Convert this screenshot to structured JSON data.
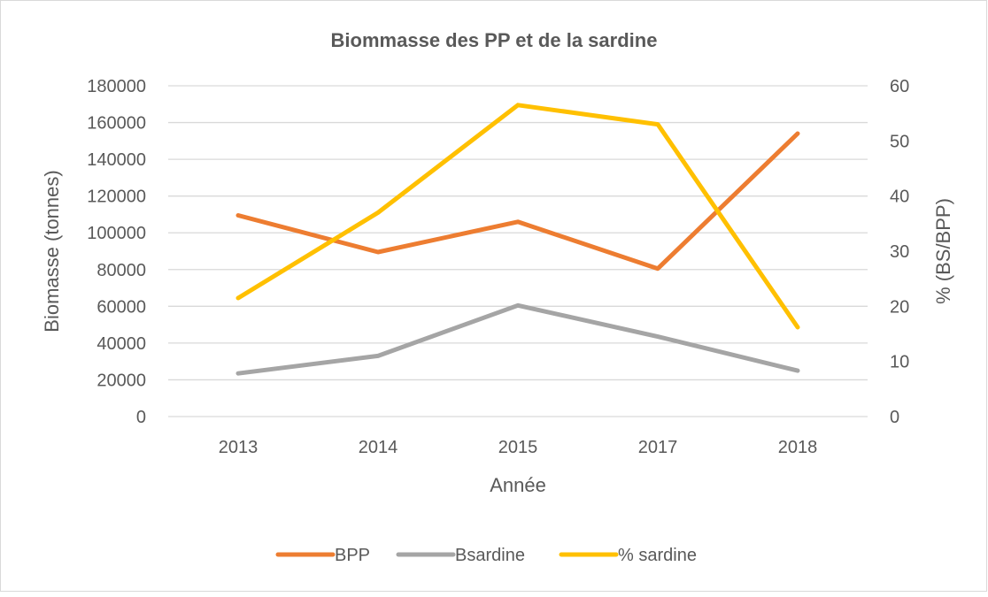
{
  "chart_data": {
    "type": "line",
    "title": "Biommasse des PP et de la sardine",
    "xlabel": "Année",
    "ylabel": "Biomasse (tonnes)",
    "y2label": "% (BS/BPP)",
    "categories": [
      "2013",
      "2014",
      "2015",
      "2017",
      "2018"
    ],
    "ylim": [
      0,
      180000
    ],
    "y_ticks": [
      0,
      20000,
      40000,
      60000,
      80000,
      100000,
      120000,
      140000,
      160000,
      180000
    ],
    "y2lim": [
      0,
      60
    ],
    "y2_ticks": [
      0,
      10,
      20,
      30,
      40,
      50,
      60
    ],
    "grid": true,
    "legend_position": "bottom",
    "series": [
      {
        "name": "BPP",
        "axis": "left",
        "color": "#ED7D31",
        "values": [
          109500,
          89500,
          106000,
          80500,
          154000
        ]
      },
      {
        "name": "Bsardine",
        "axis": "left",
        "color": "#A5A5A5",
        "values": [
          23500,
          33000,
          60500,
          43500,
          25000
        ]
      },
      {
        "name": "% sardine",
        "axis": "right",
        "color": "#FFC000",
        "values": [
          21.5,
          37,
          56.5,
          53,
          16.2
        ]
      }
    ]
  }
}
